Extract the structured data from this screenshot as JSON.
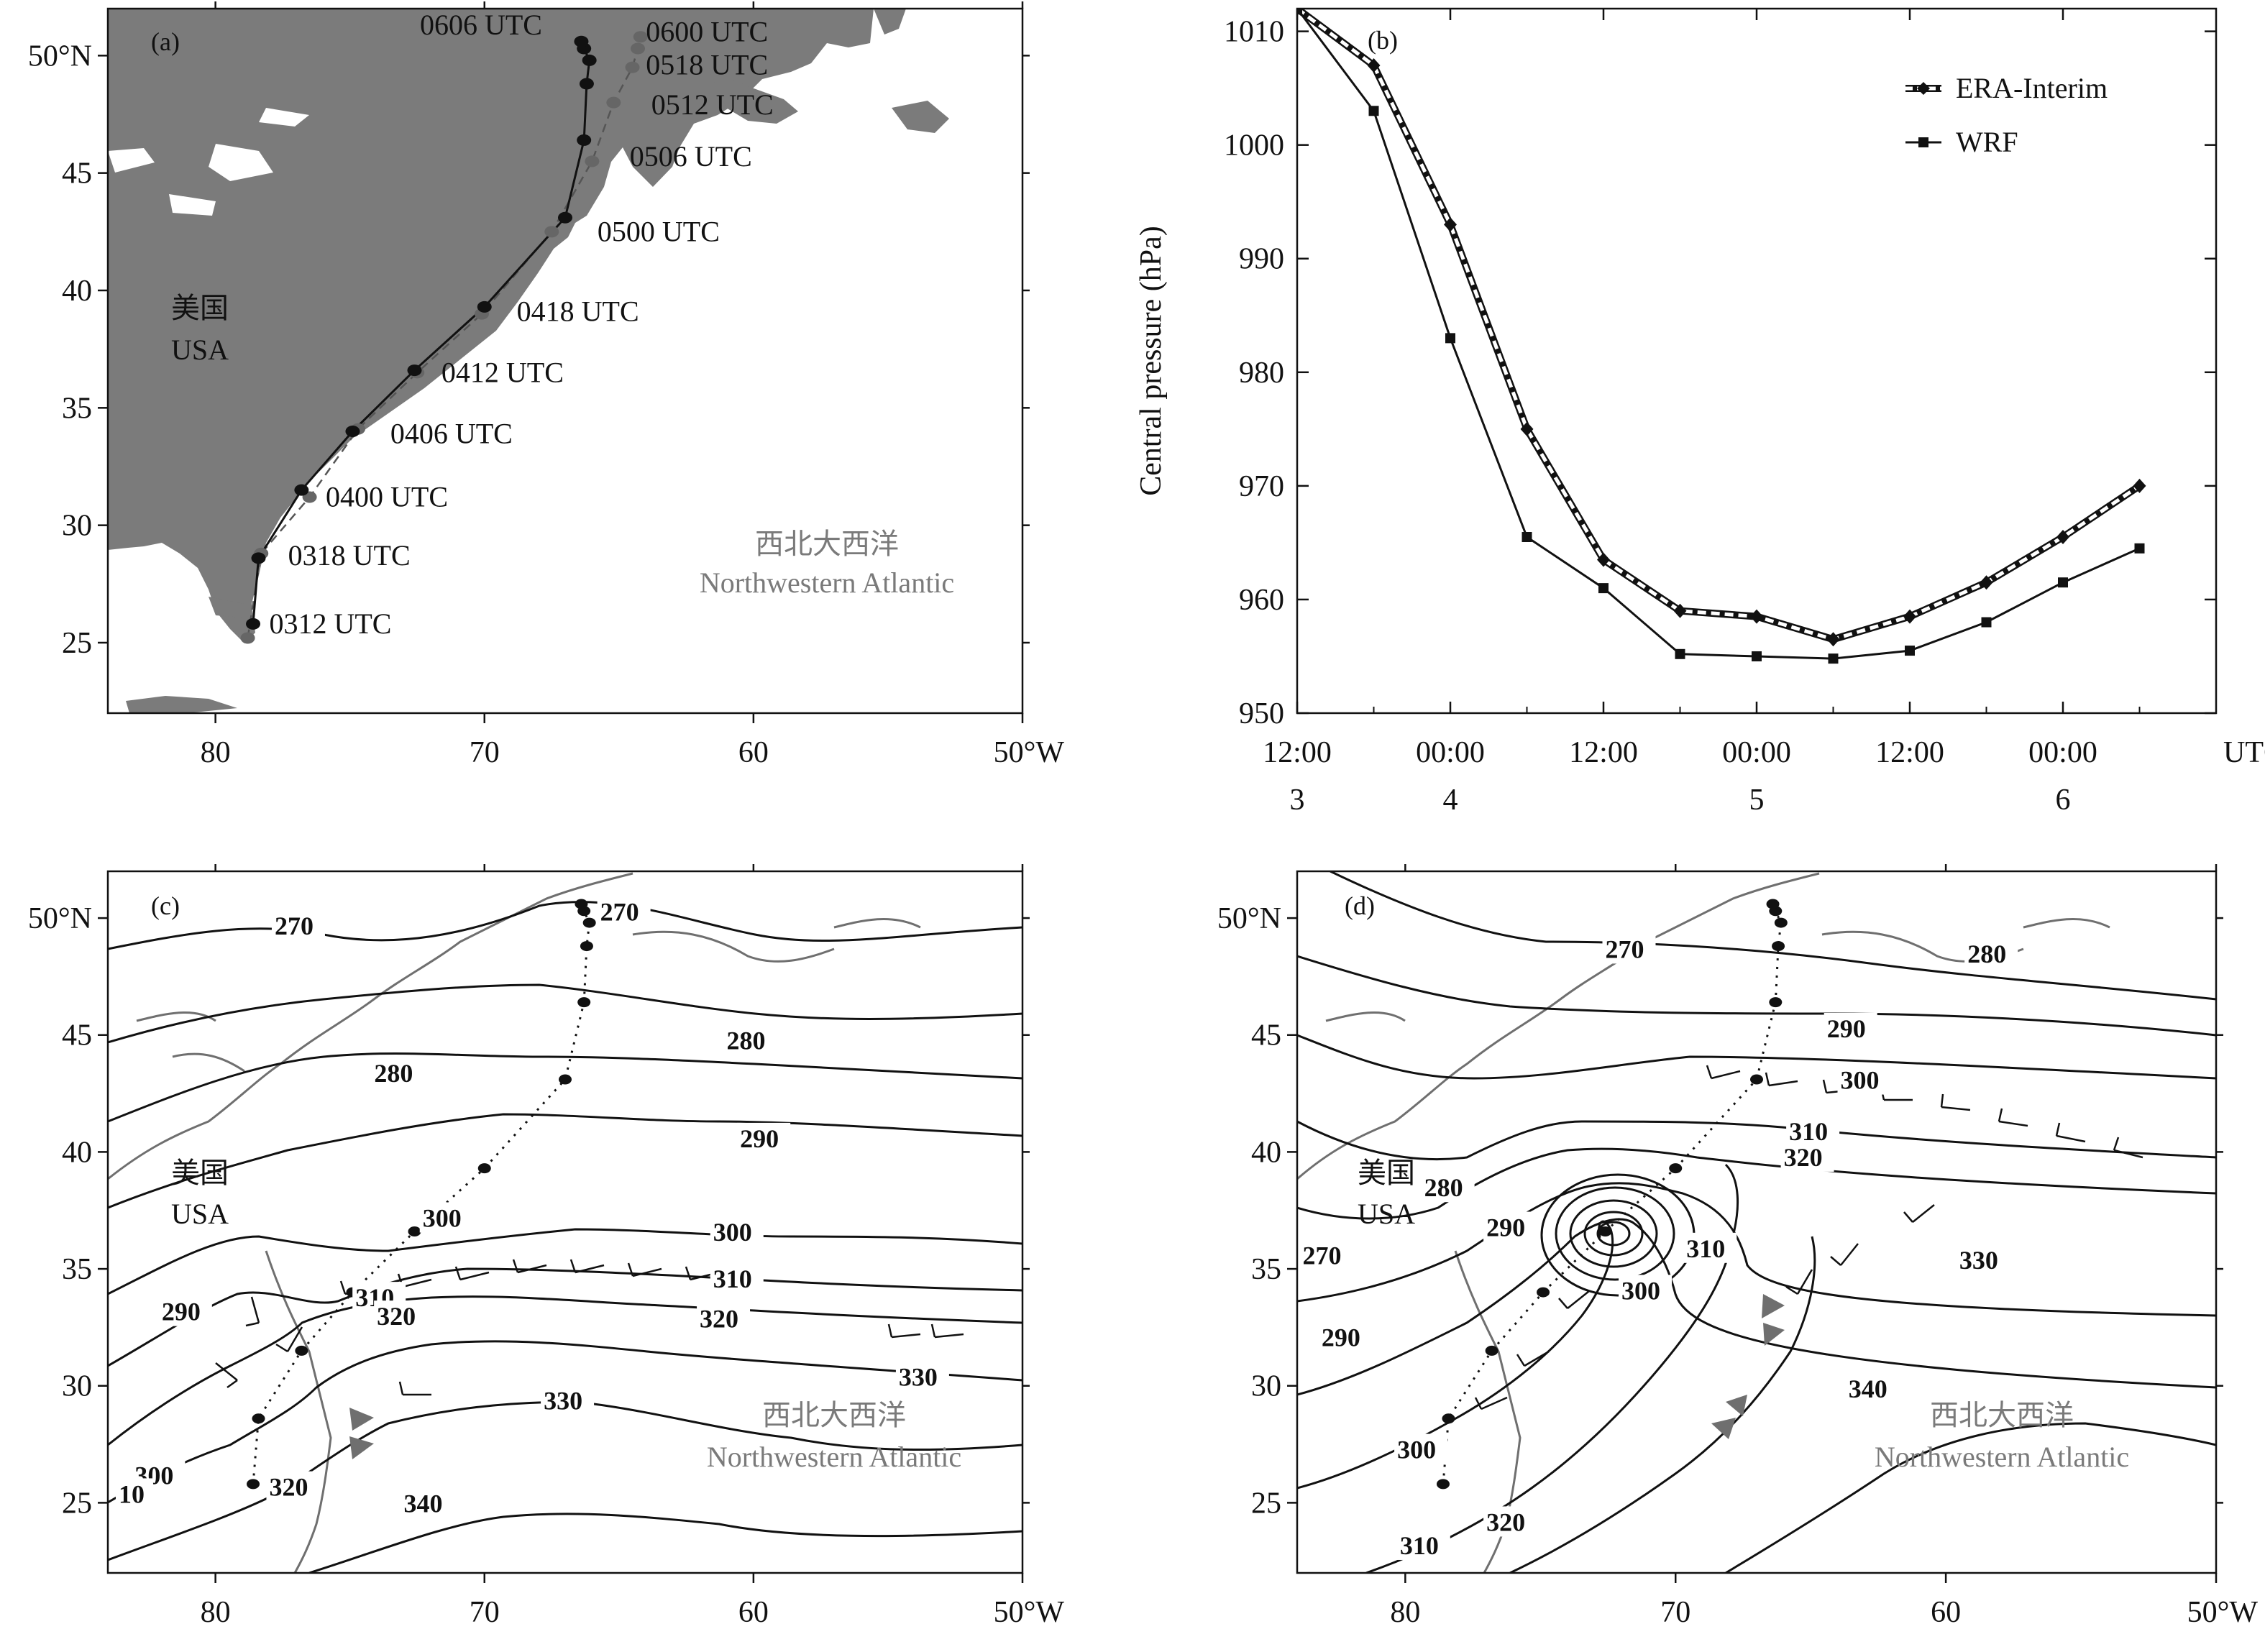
{
  "chart_data": [
    {
      "id": "a",
      "type": "scatter",
      "panel_label": "(a)",
      "x_ticks": [
        "80",
        "70",
        "60",
        "50°W"
      ],
      "y_ticks": [
        "50°N",
        "45",
        "40",
        "35",
        "30",
        "25"
      ],
      "xlim": [
        -84,
        -50
      ],
      "ylim": [
        22,
        52
      ],
      "land_label_cn": "美国",
      "land_label_en": "USA",
      "ocean_label_cn": "西北大西洋",
      "ocean_label_en": "Northwestern Atlantic",
      "track_wrf": [
        [
          -78.6,
          25.8
        ],
        [
          -78.4,
          28.6
        ],
        [
          -76.8,
          31.5
        ],
        [
          -74.9,
          34.0
        ],
        [
          -72.6,
          36.6
        ],
        [
          -70.0,
          39.3
        ],
        [
          -67.0,
          43.1
        ],
        [
          -66.3,
          46.4
        ],
        [
          -66.2,
          48.8
        ],
        [
          -66.1,
          49.8
        ],
        [
          -66.3,
          50.3
        ],
        [
          -66.4,
          50.6
        ]
      ],
      "track_era": [
        [
          -78.8,
          25.2
        ],
        [
          -78.3,
          28.8
        ],
        [
          -76.5,
          31.2
        ],
        [
          -74.7,
          34.1
        ],
        [
          -72.5,
          36.5
        ],
        [
          -70.1,
          39.0
        ],
        [
          -67.5,
          42.5
        ],
        [
          -66.0,
          45.5
        ],
        [
          -65.2,
          48.0
        ],
        [
          -64.5,
          49.5
        ],
        [
          -64.3,
          50.3
        ],
        [
          -64.2,
          50.8
        ]
      ],
      "time_labels": [
        {
          "text": "0606 UTC",
          "lon": -72.4,
          "lat": 50.9
        },
        {
          "text": "0600 UTC",
          "lon": -64.0,
          "lat": 50.6
        },
        {
          "text": "0518 UTC",
          "lon": -64.0,
          "lat": 49.2
        },
        {
          "text": "0512 UTC",
          "lon": -63.8,
          "lat": 47.5
        },
        {
          "text": "0506 UTC",
          "lon": -64.6,
          "lat": 45.3
        },
        {
          "text": "0500 UTC",
          "lon": -65.8,
          "lat": 42.1
        },
        {
          "text": "0418 UTC",
          "lon": -68.8,
          "lat": 38.7
        },
        {
          "text": "0412 UTC",
          "lon": -71.6,
          "lat": 36.1
        },
        {
          "text": "0406 UTC",
          "lon": -73.5,
          "lat": 33.5
        },
        {
          "text": "0400 UTC",
          "lon": -75.9,
          "lat": 30.8
        },
        {
          "text": "0318 UTC",
          "lon": -77.3,
          "lat": 28.3
        },
        {
          "text": "0312 UTC",
          "lon": -78.0,
          "lat": 25.4
        }
      ]
    },
    {
      "id": "b",
      "type": "line",
      "panel_label": "(b)",
      "ylabel": "Central pressure (hPa)",
      "ylim": [
        950,
        1012
      ],
      "y_ticks": [
        950,
        960,
        970,
        980,
        990,
        1000,
        1010
      ],
      "x_ticks": [
        {
          "time": "12:00",
          "day": "3",
          "t": 0
        },
        {
          "time": "00:00",
          "day": "4",
          "t": 12
        },
        {
          "time": "12:00",
          "day": "",
          "t": 24
        },
        {
          "time": "00:00",
          "day": "5",
          "t": 36
        },
        {
          "time": "12:00",
          "day": "",
          "t": 48
        },
        {
          "time": "00:00",
          "day": "6",
          "t": 60
        }
      ],
      "x_unit": "UTC",
      "xlim": [
        0,
        72
      ],
      "x": [
        0,
        6,
        12,
        18,
        24,
        30,
        36,
        42,
        48,
        54,
        60,
        66
      ],
      "series": [
        {
          "name": "ERA-Interim",
          "values": [
            1012,
            1007,
            993,
            975,
            963.5,
            959,
            958.5,
            956.5,
            958.5,
            961.5,
            965.5,
            970
          ]
        },
        {
          "name": "WRF",
          "values": [
            1012,
            1003,
            983,
            965.5,
            961,
            955.2,
            955,
            954.8,
            955.5,
            958,
            961.5,
            964.5
          ]
        }
      ],
      "legend_position": "top-right"
    },
    {
      "id": "c",
      "type": "contour",
      "panel_label": "(c)",
      "x_ticks": [
        "80",
        "70",
        "60",
        "50°W"
      ],
      "y_ticks": [
        "50°N",
        "45",
        "40",
        "35",
        "30",
        "25"
      ],
      "xlim": [
        -84,
        -50
      ],
      "ylim": [
        22,
        52
      ],
      "land_label_cn": "美国",
      "land_label_en": "USA",
      "ocean_label_cn": "西北大西洋",
      "ocean_label_en": "Northwestern Atlantic",
      "contour_labels": [
        {
          "text": "270",
          "lon": -77.8,
          "lat": 49.3
        },
        {
          "text": "270",
          "lon": -65.7,
          "lat": 49.9
        },
        {
          "text": "280",
          "lon": -74.1,
          "lat": 43.0
        },
        {
          "text": "280",
          "lon": -61.0,
          "lat": 44.4
        },
        {
          "text": "290",
          "lon": -60.5,
          "lat": 40.2
        },
        {
          "text": "290",
          "lon": -82.0,
          "lat": 32.8
        },
        {
          "text": "300",
          "lon": -72.3,
          "lat": 36.8
        },
        {
          "text": "300",
          "lon": -61.5,
          "lat": 36.2
        },
        {
          "text": "300",
          "lon": -83.0,
          "lat": 25.8
        },
        {
          "text": "310",
          "lon": -74.8,
          "lat": 33.4
        },
        {
          "text": "310",
          "lon": -61.5,
          "lat": 34.2
        },
        {
          "text": "320",
          "lon": -74.0,
          "lat": 32.6
        },
        {
          "text": "320",
          "lon": -62.0,
          "lat": 32.5
        },
        {
          "text": "320",
          "lon": -78.0,
          "lat": 25.3
        },
        {
          "text": "330",
          "lon": -67.8,
          "lat": 29.0
        },
        {
          "text": "330",
          "lon": -54.6,
          "lat": 30.0
        },
        {
          "text": "340",
          "lon": -73.0,
          "lat": 24.6
        },
        {
          "text": "10",
          "lon": -83.6,
          "lat": 25.0
        }
      ]
    },
    {
      "id": "d",
      "type": "contour",
      "panel_label": "(d)",
      "x_ticks": [
        "80",
        "70",
        "60",
        "50°W"
      ],
      "y_ticks": [
        "50°N",
        "45",
        "40",
        "35",
        "30",
        "25"
      ],
      "xlim": [
        -84,
        -50
      ],
      "ylim": [
        22,
        52
      ],
      "land_label_cn": "美国",
      "land_label_en": "USA",
      "ocean_label_cn": "西北大西洋",
      "ocean_label_en": "Northwestern Atlantic",
      "contour_labels": [
        {
          "text": "270",
          "lon": -72.6,
          "lat": 48.3
        },
        {
          "text": "280",
          "lon": -59.2,
          "lat": 48.1
        },
        {
          "text": "290",
          "lon": -64.4,
          "lat": 44.9
        },
        {
          "text": "300",
          "lon": -63.9,
          "lat": 42.7
        },
        {
          "text": "310",
          "lon": -65.8,
          "lat": 40.5
        },
        {
          "text": "320",
          "lon": -66.0,
          "lat": 39.4
        },
        {
          "text": "280",
          "lon": -79.3,
          "lat": 38.1
        },
        {
          "text": "290",
          "lon": -77.0,
          "lat": 36.4
        },
        {
          "text": "270",
          "lon": -83.8,
          "lat": 35.2
        },
        {
          "text": "310",
          "lon": -69.6,
          "lat": 35.5
        },
        {
          "text": "300",
          "lon": -72.0,
          "lat": 33.7
        },
        {
          "text": "330",
          "lon": -59.5,
          "lat": 35.0
        },
        {
          "text": "290",
          "lon": -83.1,
          "lat": 31.7
        },
        {
          "text": "340",
          "lon": -63.6,
          "lat": 29.5
        },
        {
          "text": "300",
          "lon": -80.3,
          "lat": 26.9
        },
        {
          "text": "310",
          "lon": -80.2,
          "lat": 22.8
        },
        {
          "text": "320",
          "lon": -77.0,
          "lat": 23.8
        }
      ]
    }
  ]
}
